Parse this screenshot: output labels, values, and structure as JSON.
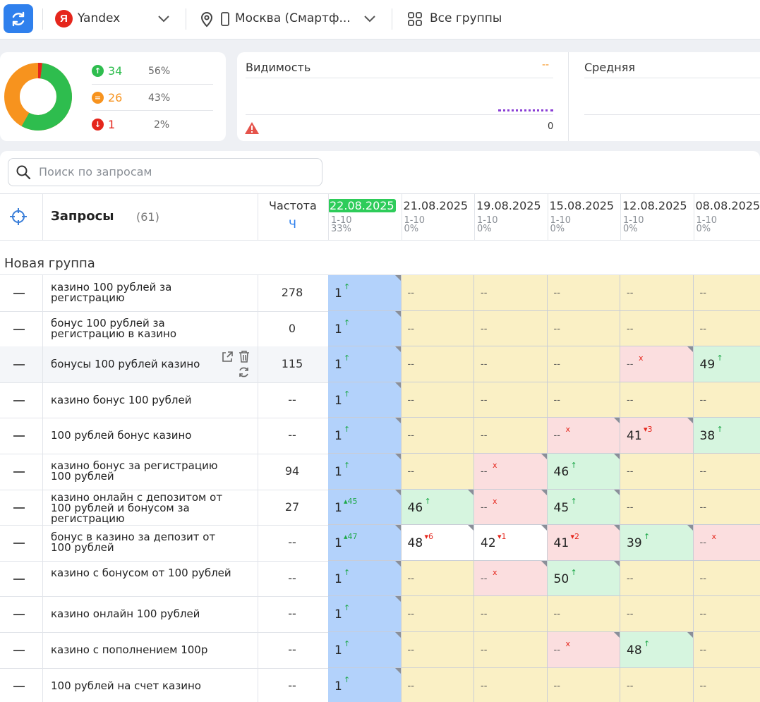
{
  "toolbar": {
    "engine": "Yandex",
    "region": "Москва (Смартф...",
    "groups": "Все группы"
  },
  "summary": {
    "up": {
      "count": "34",
      "pct": "56%"
    },
    "same": {
      "count": "26",
      "pct": "43%"
    },
    "down": {
      "count": "1",
      "pct": "2%"
    },
    "donut": {
      "up_fraction": 0.56,
      "same_fraction": 0.43,
      "down_fraction": 0.02
    },
    "colors": {
      "up": "#2ebd4e",
      "same": "#f7931e",
      "down": "#e5261c"
    }
  },
  "visibility": {
    "title": "Видимость",
    "value": "--",
    "axis_zero": "0"
  },
  "average": {
    "title": "Средняя"
  },
  "search": {
    "placeholder": "Поиск по запросам"
  },
  "table": {
    "title": "Запросы",
    "count": "(61)",
    "freq_header": "Частота",
    "freq_sub": "Ч",
    "dates": [
      {
        "date": "22.08.2025",
        "range": "1-10",
        "pct": "33%",
        "active": true
      },
      {
        "date": "21.08.2025",
        "range": "1-10",
        "pct": "0%"
      },
      {
        "date": "19.08.2025",
        "range": "1-10",
        "pct": "0%"
      },
      {
        "date": "15.08.2025",
        "range": "1-10",
        "pct": "0%"
      },
      {
        "date": "12.08.2025",
        "range": "1-10",
        "pct": "0%"
      },
      {
        "date": "08.08.2025",
        "range": "1-10",
        "pct": "0%"
      }
    ],
    "group": "Новая группа",
    "rows": [
      {
        "query": "казино 100 рублей за регистрацию",
        "freq": "278",
        "cells": [
          [
            "1",
            "↑",
            "g"
          ],
          [
            "--",
            "",
            "y"
          ],
          [
            "--",
            "",
            "y"
          ],
          [
            "--",
            "",
            "y"
          ],
          [
            "--",
            "",
            "y"
          ],
          [
            "--",
            "",
            "y"
          ]
        ]
      },
      {
        "query": "бонус 100 рублей за регистрацию в казино",
        "freq": "0",
        "cells": [
          [
            "1",
            "↑",
            "g"
          ],
          [
            "--",
            "",
            "y"
          ],
          [
            "--",
            "",
            "y"
          ],
          [
            "--",
            "",
            "y"
          ],
          [
            "--",
            "",
            "y"
          ],
          [
            "--",
            "",
            "y"
          ]
        ]
      },
      {
        "query": "бонусы 100 рублей казино",
        "freq": "115",
        "cells": [
          [
            "1",
            "↑",
            "g"
          ],
          [
            "--",
            "",
            "y"
          ],
          [
            "--",
            "",
            "y"
          ],
          [
            "--",
            "",
            "y"
          ],
          [
            "--",
            "x",
            "r"
          ],
          [
            "49",
            "↑",
            "g"
          ]
        ]
      },
      {
        "query": "казино бонус 100 рублей",
        "freq": "--",
        "cells": [
          [
            "1",
            "↑",
            "g"
          ],
          [
            "--",
            "",
            "y"
          ],
          [
            "--",
            "",
            "y"
          ],
          [
            "--",
            "",
            "y"
          ],
          [
            "--",
            "",
            "y"
          ],
          [
            "--",
            "",
            "y"
          ]
        ]
      },
      {
        "query": "100 рублей бонус казино",
        "freq": "--",
        "cells": [
          [
            "1",
            "↑",
            "g"
          ],
          [
            "--",
            "",
            "y"
          ],
          [
            "--",
            "",
            "y"
          ],
          [
            "--",
            "x",
            "r"
          ],
          [
            "41",
            "▾3",
            "r"
          ],
          [
            "38",
            "↑",
            "g"
          ]
        ]
      },
      {
        "query": "казино бонус за регистрацию 100 рублей",
        "freq": "94",
        "cells": [
          [
            "1",
            "↑",
            "g"
          ],
          [
            "--",
            "",
            "y"
          ],
          [
            "--",
            "x",
            "r"
          ],
          [
            "46",
            "↑",
            "g"
          ],
          [
            "--",
            "",
            "y"
          ],
          [
            "--",
            "",
            "y"
          ]
        ]
      },
      {
        "query": "казино онлайн с депозитом от 100 рублей и бонусом за регистрацию",
        "freq": "27",
        "cells": [
          [
            "1",
            "▴45",
            "g"
          ],
          [
            "46",
            "↑",
            "g"
          ],
          [
            "--",
            "x",
            "r"
          ],
          [
            "45",
            "↑",
            "g"
          ],
          [
            "--",
            "",
            "y"
          ],
          [
            "--",
            "",
            "y"
          ]
        ]
      },
      {
        "query": "бонус в казино за депозит от 100 рублей",
        "freq": "--",
        "cells": [
          [
            "1",
            "▴47",
            "g"
          ],
          [
            "48",
            "▾6",
            "r"
          ],
          [
            "42",
            "▾1",
            "r"
          ],
          [
            "41",
            "▾2",
            "r"
          ],
          [
            "39",
            "↑",
            "g"
          ],
          [
            "--",
            "x",
            "r"
          ]
        ]
      },
      {
        "query": "казино с бонусом от 100 рублей",
        "freq": "--",
        "cells": [
          [
            "1",
            "↑",
            "g"
          ],
          [
            "--",
            "",
            "y"
          ],
          [
            "--",
            "x",
            "r"
          ],
          [
            "50",
            "↑",
            "g"
          ],
          [
            "--",
            "",
            "y"
          ],
          [
            "--",
            "",
            "y"
          ]
        ]
      },
      {
        "query": "казино онлайн 100 рублей",
        "freq": "--",
        "cells": [
          [
            "1",
            "↑",
            "g"
          ],
          [
            "--",
            "",
            "y"
          ],
          [
            "--",
            "",
            "y"
          ],
          [
            "--",
            "",
            "y"
          ],
          [
            "--",
            "",
            "y"
          ],
          [
            "--",
            "",
            "y"
          ]
        ]
      },
      {
        "query": "казино с пополнением 100р",
        "freq": "--",
        "cells": [
          [
            "1",
            "↑",
            "g"
          ],
          [
            "--",
            "",
            "y"
          ],
          [
            "--",
            "",
            "y"
          ],
          [
            "--",
            "x",
            "r"
          ],
          [
            "48",
            "↑",
            "g"
          ],
          [
            "--",
            "",
            "y"
          ]
        ]
      },
      {
        "query": "100 рублей на счет казино",
        "freq": "--",
        "cells": [
          [
            "1",
            "↑",
            "g"
          ],
          [
            "--",
            "",
            "y"
          ],
          [
            "--",
            "",
            "y"
          ],
          [
            "--",
            "",
            "y"
          ],
          [
            "--",
            "",
            "y"
          ],
          [
            "--",
            "",
            "y"
          ]
        ]
      }
    ]
  }
}
